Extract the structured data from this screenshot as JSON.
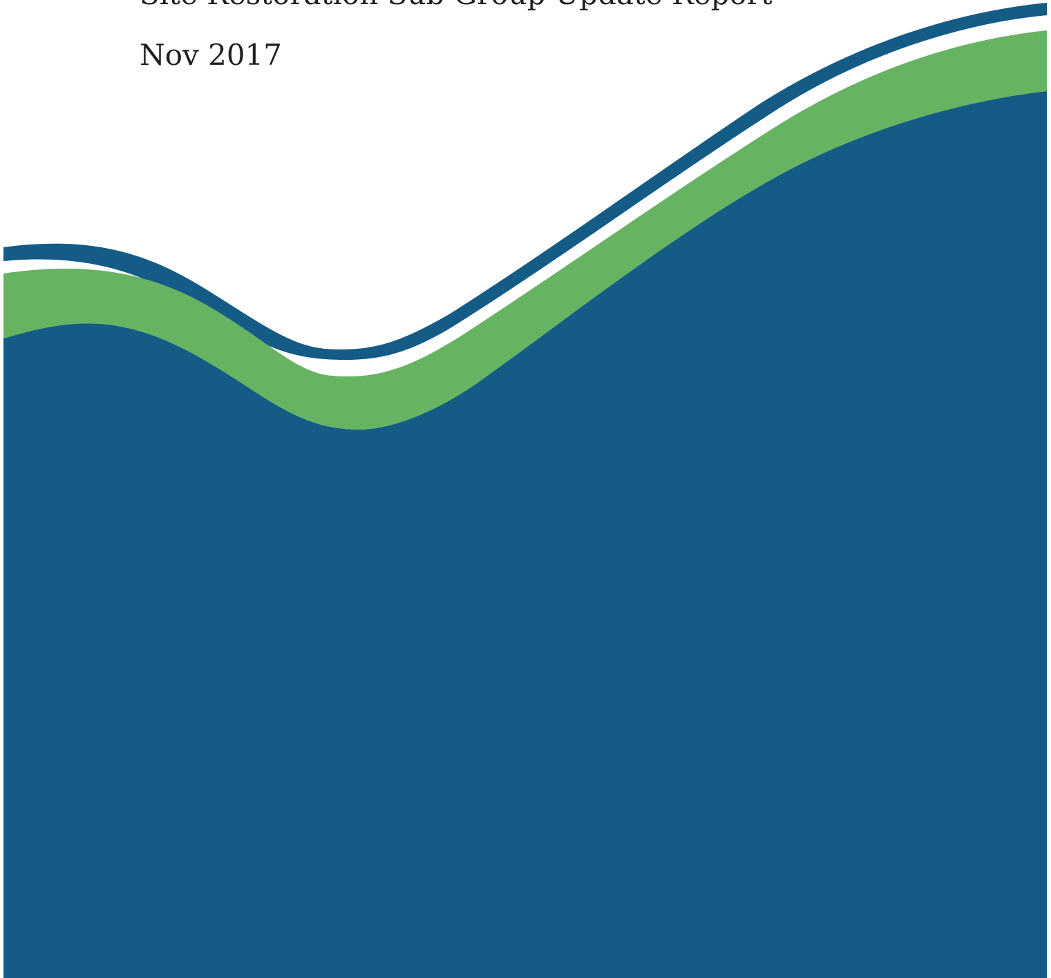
{
  "document": {
    "title": "Site Restoration Sub Group Update Report",
    "date": "Nov 2017"
  },
  "colors": {
    "background": "#ffffff",
    "navy": "#145b86",
    "green": "#66b462",
    "text": "#1f1f1f"
  }
}
